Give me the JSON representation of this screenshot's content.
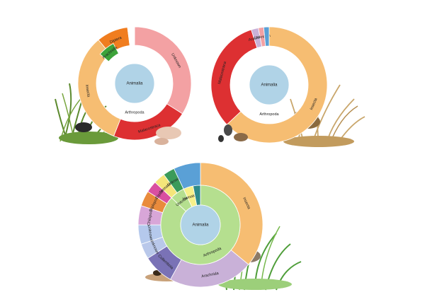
{
  "chart_data": [
    {
      "type": "sunburst",
      "root": "Animalia",
      "inner_ring": [
        {
          "label": "Arthropoda",
          "value": 1.0,
          "color": "#b5df8f"
        }
      ],
      "outer_ring": [
        {
          "label": "Unknown",
          "value": 0.34,
          "color": "#f3a1a3"
        },
        {
          "label": "Malacostraca",
          "value": 0.22,
          "color": "#dd3032"
        },
        {
          "label": "Insecta",
          "value": 0.33,
          "color": "#f6bd72"
        },
        {
          "label": "Diptera",
          "value": 0.09,
          "color": "#f07d1f"
        },
        {
          "label": "",
          "value": 0.02,
          "color": "#ffffff"
        }
      ],
      "extra_segments": [
        {
          "label": "Arachnida",
          "value": 0.1,
          "color": "#3da33a",
          "note": "middle-ring wedge"
        }
      ],
      "illustration": "reed grass clump with aquatic crustaceans and a turtle"
    },
    {
      "type": "sunburst",
      "root": "Animalia",
      "inner_ring": [
        {
          "label": "Arthropoda",
          "value": 1.0,
          "color": "#b5df8f"
        }
      ],
      "outer_ring": [
        {
          "label": "Insecta",
          "value": 0.63,
          "color": "#f6bd72"
        },
        {
          "label": "Malacostraca",
          "value": 0.32,
          "color": "#dd3032"
        },
        {
          "label": "Arachnida",
          "value": 0.02,
          "color": "#c9b1d8"
        },
        {
          "label": "Unknown",
          "value": 0.015,
          "color": "#f3a1a3"
        },
        {
          "label": "",
          "value": 0.015,
          "color": "#5aa0d6"
        }
      ],
      "illustration": "dry grass tussock with a ground bird and beetles"
    },
    {
      "type": "sunburst",
      "root": "Animalia",
      "inner_ring": [
        {
          "label": "Arthropoda",
          "value": 0.87,
          "color": "#b5df8f"
        },
        {
          "label": "Unknown",
          "value": 0.06,
          "color": "#b5df8f"
        },
        {
          "label": "Nematoda",
          "value": 0.04,
          "color": "#f7f08a"
        },
        {
          "label": "",
          "value": 0.03,
          "color": "#2e8b8b"
        }
      ],
      "outer_ring": [
        {
          "label": "Insecta",
          "value": 0.36,
          "color": "#f6bd72"
        },
        {
          "label": "Arachnida",
          "value": 0.22,
          "color": "#c9b1d8"
        },
        {
          "label": "Collembola",
          "value": 0.08,
          "color": "#7a72b6"
        },
        {
          "label": "Unknown",
          "value": 0.04,
          "color": "#b9c8ea"
        },
        {
          "label": "Unknown",
          "value": 0.05,
          "color": "#b5c9ec"
        },
        {
          "label": "Chilopoda",
          "value": 0.05,
          "color": "#d8a6d8"
        },
        {
          "label": "Diplopoda",
          "value": 0.04,
          "color": "#e98b3c"
        },
        {
          "label": "Diplura",
          "value": 0.03,
          "color": "#d94fa0"
        },
        {
          "label": "Nematoda",
          "value": 0.03,
          "color": "#f4e57a"
        },
        {
          "label": "Unknown",
          "value": 0.03,
          "color": "#3b9b5a"
        },
        {
          "label": "",
          "value": 0.07,
          "color": "#5aa0d6"
        }
      ],
      "illustration": "green reeds with a quail and soil invertebrates"
    }
  ],
  "colors": {
    "center": "#b0d3e7",
    "arthropoda": "#b5df8f",
    "insecta": "#f6bd72",
    "malacostraca": "#dd3032",
    "unknown": "#f3a1a3",
    "arachnida": "#c9b1d8"
  }
}
